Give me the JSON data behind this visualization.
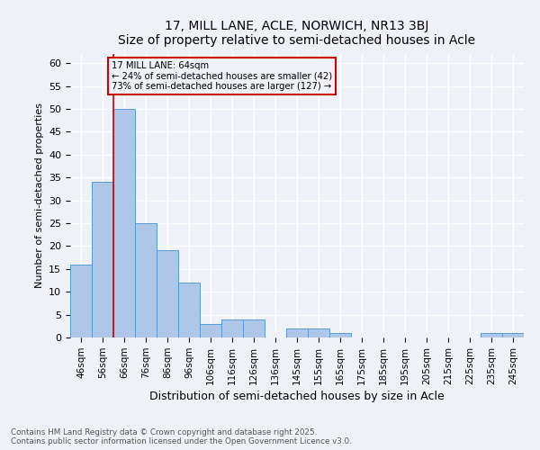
{
  "title1": "17, MILL LANE, ACLE, NORWICH, NR13 3BJ",
  "title2": "Size of property relative to semi-detached houses in Acle",
  "xlabel": "Distribution of semi-detached houses by size in Acle",
  "ylabel": "Number of semi-detached properties",
  "categories": [
    "46sqm",
    "56sqm",
    "66sqm",
    "76sqm",
    "86sqm",
    "96sqm",
    "106sqm",
    "116sqm",
    "126sqm",
    "136sqm",
    "145sqm",
    "155sqm",
    "165sqm",
    "175sqm",
    "185sqm",
    "195sqm",
    "205sqm",
    "215sqm",
    "225sqm",
    "235sqm",
    "245sqm"
  ],
  "values": [
    16,
    34,
    50,
    25,
    19,
    12,
    3,
    4,
    4,
    0,
    2,
    2,
    1,
    0,
    0,
    0,
    0,
    0,
    0,
    1,
    1
  ],
  "bar_color": "#aec6e8",
  "bar_edge_color": "#5b9bd5",
  "vline_color": "#cc0000",
  "annotation_title": "17 MILL LANE: 64sqm",
  "annotation_line1": "← 24% of semi-detached houses are smaller (42)",
  "annotation_line2": "73% of semi-detached houses are larger (127) →",
  "annotation_box_color": "#cc0000",
  "ylim": [
    0,
    62
  ],
  "yticks": [
    0,
    5,
    10,
    15,
    20,
    25,
    30,
    35,
    40,
    45,
    50,
    55,
    60
  ],
  "footer": "Contains HM Land Registry data © Crown copyright and database right 2025.\nContains public sector information licensed under the Open Government Licence v3.0.",
  "background_color": "#eef2f8",
  "grid_color": "#ffffff"
}
